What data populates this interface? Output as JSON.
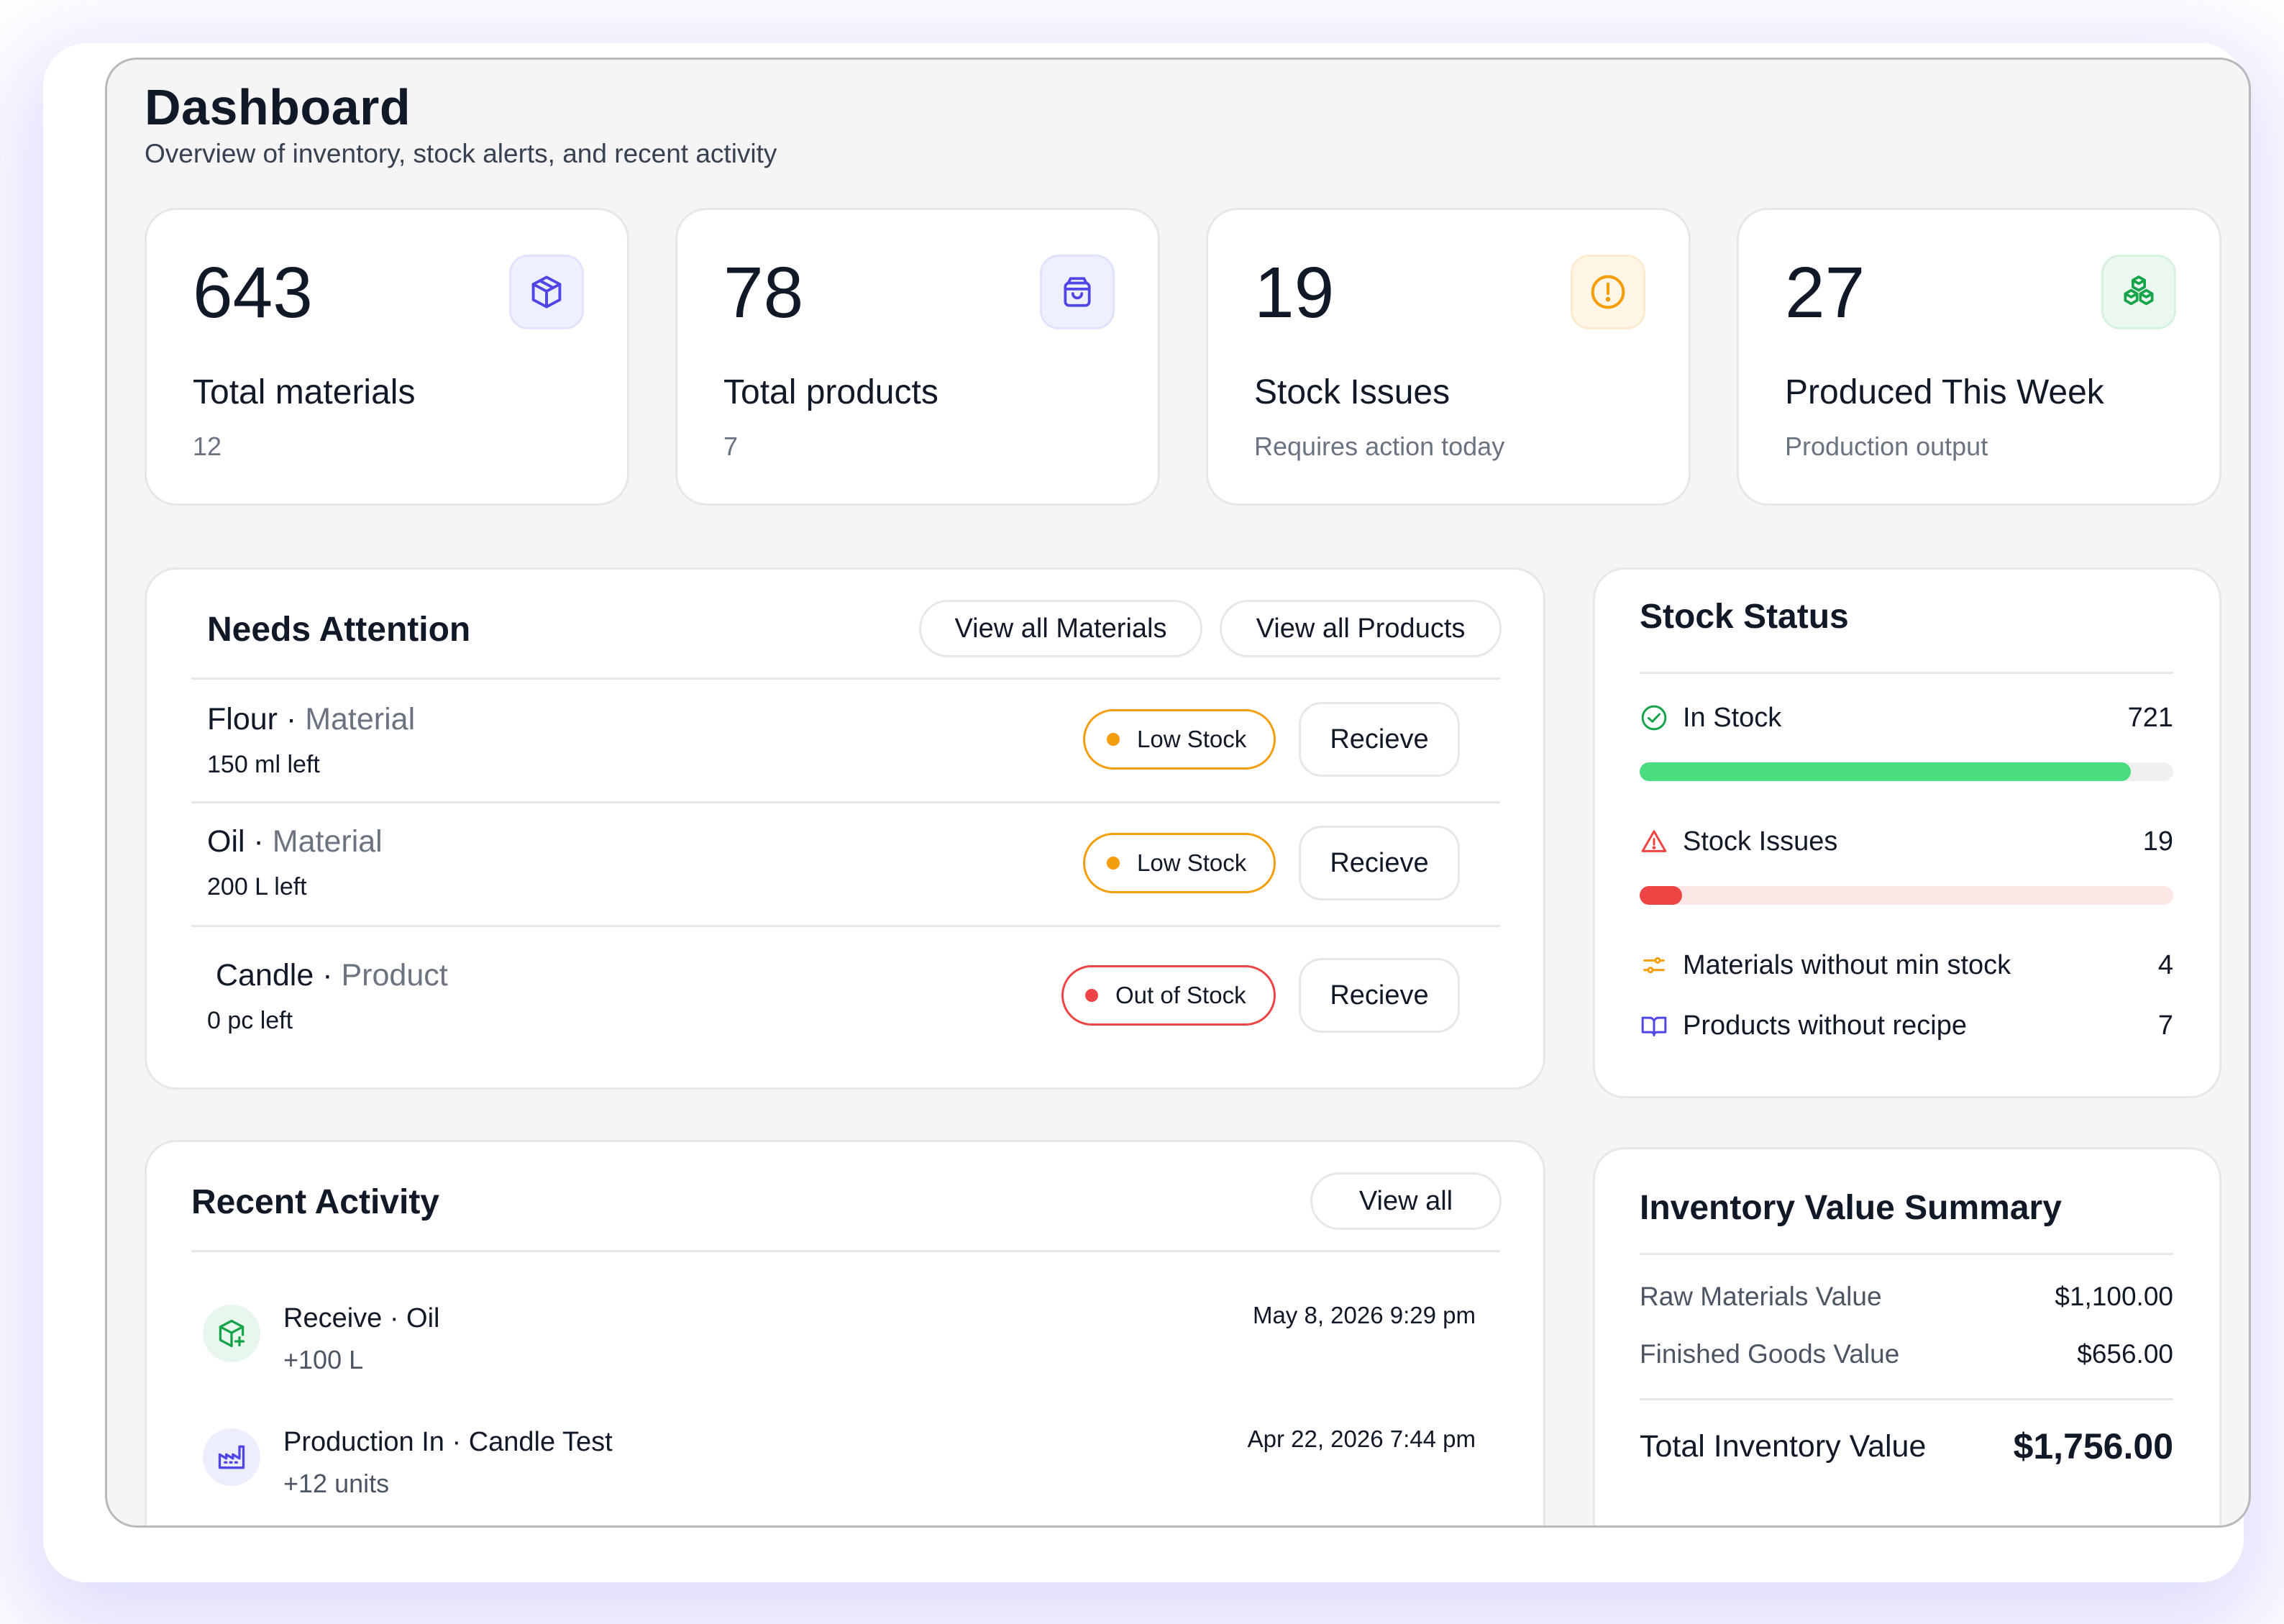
{
  "header": {
    "title": "Dashboard",
    "subtitle": "Overview of inventory, stock alerts, and recent activity"
  },
  "stats": [
    {
      "value": "643",
      "label": "Total materials",
      "sub": "12",
      "icon": "cube-icon",
      "color": "#4f46e5"
    },
    {
      "value": "78",
      "label": "Total products",
      "sub": "7",
      "icon": "shopping-bag-icon",
      "color": "#4f46e5"
    },
    {
      "value": "19",
      "label": "Stock Issues",
      "sub": "Requires action today",
      "icon": "alert-circle-icon",
      "color": "#f59e0b"
    },
    {
      "value": "27",
      "label": "Produced This Week",
      "sub": "Production output",
      "icon": "boxes-icon",
      "color": "#16a34a"
    }
  ],
  "attention": {
    "title": "Needs Attention",
    "view_materials": "View all Materials",
    "view_products": "View all Products",
    "separator": "·",
    "items": [
      {
        "name": "Flour",
        "type": "Material",
        "left": "150 ml left",
        "status": "Low Stock",
        "action": "Recieve"
      },
      {
        "name": "Oil",
        "type": "Material",
        "left": "200 L left",
        "status": "Low Stock",
        "action": "Recieve"
      },
      {
        "name": "Candle",
        "type": "Product",
        "left": "0 pc left",
        "status": "Out of Stock",
        "action": "Recieve"
      }
    ]
  },
  "stock_status": {
    "title": "Stock Status",
    "in_stock": {
      "label": "In Stock",
      "value": "721",
      "fraction": 0.92
    },
    "issues": {
      "label": "Stock Issues",
      "value": "19",
      "fraction": 0.08
    },
    "no_min": {
      "label": "Materials without min stock",
      "value": "4"
    },
    "no_recipe": {
      "label": "Products without recipe",
      "value": "7"
    }
  },
  "activity": {
    "title": "Recent Activity",
    "view_all": "View all",
    "items": [
      {
        "title": "Receive · Oil",
        "sub": "+100 L",
        "time": "May 8, 2026 9:29 pm",
        "icon": "package-plus-icon"
      },
      {
        "title": "Production In · Candle Test",
        "sub": "+12 units",
        "time": "Apr 22, 2026 7:44 pm",
        "icon": "factory-icon"
      }
    ]
  },
  "inventory_value": {
    "title": "Inventory Value Summary",
    "raw_label": "Raw Materials Value",
    "raw_value": "$1,100.00",
    "finished_label": "Finished Goods Value",
    "finished_value": "$656.00",
    "total_label": "Total Inventory Value",
    "total_value": "$1,756.00"
  },
  "colors": {
    "low_stock": "#f59e0b",
    "out_of_stock": "#ef4444",
    "in_stock_bar": "#4ade80",
    "issues_bar": "#ef4444",
    "accent": "#4f46e5"
  }
}
